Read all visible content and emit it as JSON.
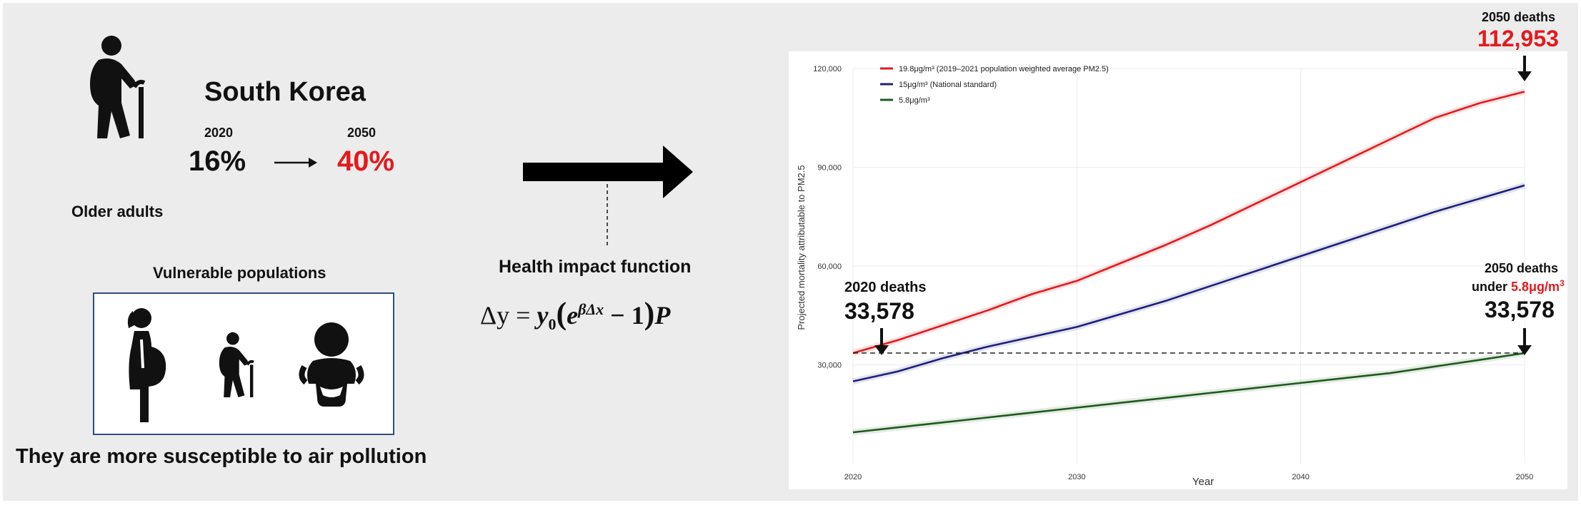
{
  "left": {
    "country": "South Korea",
    "year_start": "2020",
    "year_end": "2050",
    "pct_start": "16%",
    "pct_end": "40%",
    "older_adults_label": "Older adults",
    "vulnerable_title": "Vulnerable populations",
    "susceptible_text": "They are more susceptible to air pollution",
    "icons": [
      "elderly-person-icon",
      "pregnant-woman-icon",
      "elderly-person-icon",
      "infant-icon"
    ]
  },
  "middle": {
    "hif_title": "Health impact function",
    "equation_lhs": "Δy = ",
    "equation_y": "y",
    "equation_sub": "0",
    "equation_open": "(",
    "equation_e": "e",
    "equation_exp": "βΔx",
    "equation_minus": " − 1",
    "equation_close": ")",
    "equation_P": "P"
  },
  "annotations": {
    "top_right_label": "2050 deaths",
    "top_right_value": "112,953",
    "left_label": "2020 deaths",
    "left_value": "33,578",
    "right_label_1": "2050 deaths",
    "right_label_2a": "under ",
    "right_label_2b": "5.8μg/m",
    "right_label_2c": "3",
    "right_value": "33,578"
  },
  "colors": {
    "red": "#e31a1c",
    "navy": "#1f1f7a",
    "green": "#1d5b1d",
    "highlight_red": "#e31a1c"
  },
  "chart_data": {
    "type": "line",
    "title": "",
    "xlabel": "Year",
    "ylabel": "Projected mortality attributable to PM2.5",
    "xlim": [
      2020,
      2050
    ],
    "ylim": [
      0,
      120000
    ],
    "x_ticks": [
      "2020",
      "2030",
      "2040",
      "2050"
    ],
    "y_ticks": [
      "30,000",
      "60,000",
      "90,000",
      "120,000"
    ],
    "x": [
      2020,
      2022,
      2024,
      2026,
      2028,
      2030,
      2032,
      2034,
      2036,
      2038,
      2040,
      2042,
      2044,
      2046,
      2048,
      2050
    ],
    "series": [
      {
        "name": "19.8μg/m³ (2019–2021 population weighted average PM2.5)",
        "color": "#e31a1c",
        "values": [
          33578,
          37500,
          42000,
          46500,
          51500,
          55500,
          61000,
          66500,
          72500,
          79000,
          85500,
          92000,
          98500,
          105000,
          109500,
          112953
        ]
      },
      {
        "name": "15μg/m³ (National standard)",
        "color": "#1f1f7a",
        "values": [
          25000,
          28000,
          32000,
          35500,
          38500,
          41500,
          45500,
          49500,
          54000,
          58500,
          63000,
          67500,
          72000,
          76500,
          80500,
          84500
        ]
      },
      {
        "name": "5.8μg/m³",
        "color": "#1d5b1d",
        "values": [
          9500,
          11000,
          12500,
          14000,
          15500,
          17000,
          18500,
          20000,
          21500,
          23000,
          24500,
          26000,
          27500,
          29500,
          31500,
          33578
        ]
      }
    ],
    "reference_line": {
      "value": 33578,
      "style": "dashed"
    },
    "legend_position": "top-left",
    "grid": true
  }
}
